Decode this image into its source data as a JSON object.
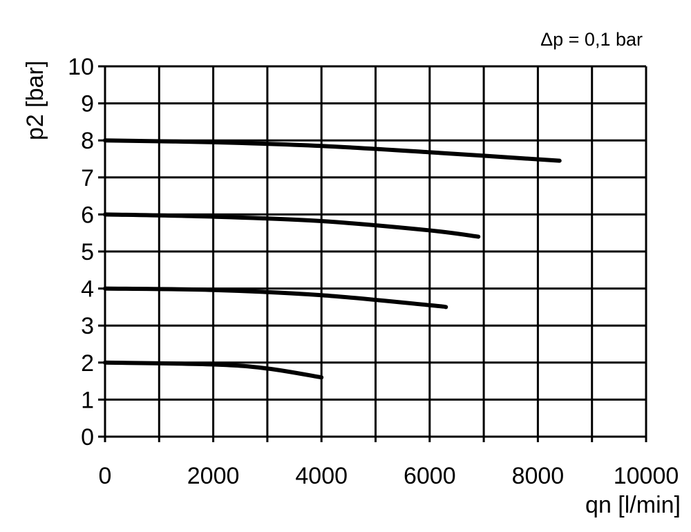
{
  "chart_data": {
    "type": "line",
    "title": "",
    "annotation": "Δp = 0,1 bar",
    "xlabel": "qn [l/min]",
    "ylabel": "p2 [bar]",
    "xlim": [
      0,
      10000
    ],
    "ylim": [
      0,
      10
    ],
    "grid": true,
    "x_ticks": [
      "0",
      "2000",
      "4000",
      "6000",
      "8000",
      "10000"
    ],
    "y_ticks": [
      "0",
      "1",
      "2",
      "3",
      "4",
      "5",
      "6",
      "7",
      "8",
      "9",
      "10"
    ],
    "line_color": "#000000",
    "series": [
      {
        "x": [
          0,
          2000,
          4000,
          6000,
          8400
        ],
        "y": [
          8,
          7.95,
          7.85,
          7.68,
          7.45
        ]
      },
      {
        "x": [
          0,
          2000,
          4000,
          6000,
          6900
        ],
        "y": [
          6,
          5.94,
          5.82,
          5.57,
          5.4
        ]
      },
      {
        "x": [
          0,
          2000,
          4000,
          6000,
          6300
        ],
        "y": [
          4,
          3.96,
          3.82,
          3.55,
          3.5
        ]
      },
      {
        "x": [
          0,
          2000,
          3000,
          4000
        ],
        "y": [
          2,
          1.95,
          1.84,
          1.6
        ]
      }
    ]
  }
}
